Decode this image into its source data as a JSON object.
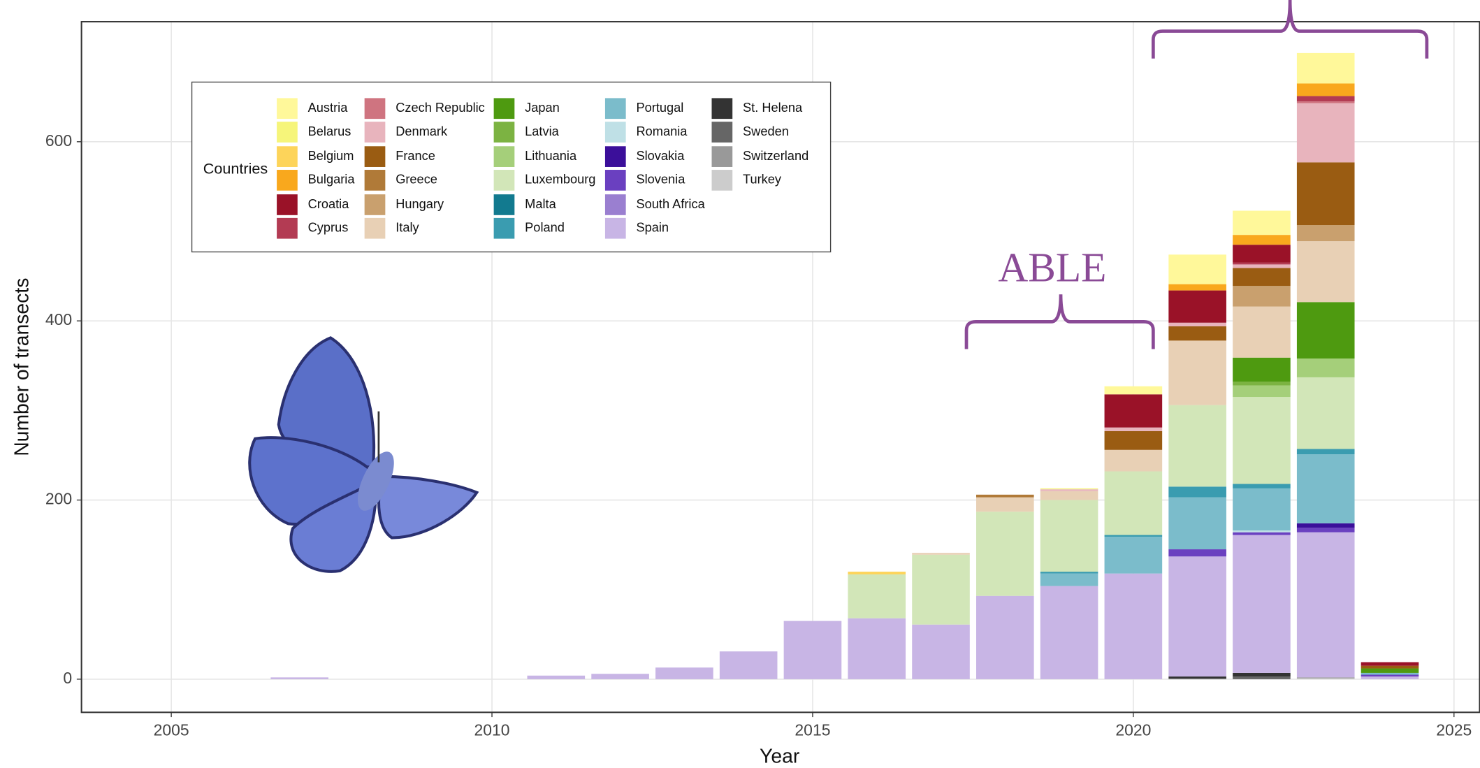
{
  "chart_data": {
    "type": "bar",
    "stacked": true,
    "x_label": "Year",
    "y_label": "Number of transects",
    "legend_title": "Countries",
    "annotation": "ABLE",
    "x": [
      2007,
      2011,
      2012,
      2013,
      2014,
      2015,
      2016,
      2017,
      2018,
      2019,
      2020,
      2021,
      2022,
      2023,
      2024
    ],
    "xlim": [
      2003.6,
      2025.4
    ],
    "xticks": [
      2005,
      2010,
      2015,
      2020,
      2025
    ],
    "ylim": [
      -37,
      734
    ],
    "yticks": [
      0,
      200,
      400,
      600
    ],
    "grid": true,
    "series": [
      {
        "name": "Austria",
        "color": "#fff89a",
        "values": [
          0,
          0,
          0,
          0,
          0,
          0,
          0,
          0,
          0,
          0,
          9,
          33,
          27,
          34,
          0
        ]
      },
      {
        "name": "Belarus",
        "color": "#f6f57a",
        "values": [
          0,
          0,
          0,
          0,
          0,
          0,
          0,
          0,
          0,
          1,
          0,
          0,
          0,
          0,
          0
        ]
      },
      {
        "name": "Belgium",
        "color": "#fdd45a",
        "values": [
          0,
          0,
          0,
          0,
          0,
          0,
          3,
          0,
          0,
          0,
          0,
          0,
          0,
          0,
          0
        ]
      },
      {
        "name": "Bulgaria",
        "color": "#f9a81d",
        "values": [
          0,
          0,
          0,
          0,
          0,
          0,
          0,
          0,
          0,
          0,
          0,
          7,
          11,
          14,
          0
        ]
      },
      {
        "name": "Croatia",
        "color": "#9a1228",
        "values": [
          0,
          0,
          0,
          0,
          0,
          0,
          0,
          0,
          0,
          0,
          37,
          36,
          20,
          0,
          4
        ]
      },
      {
        "name": "Cyprus",
        "color": "#b33b53",
        "values": [
          0,
          0,
          0,
          0,
          0,
          0,
          0,
          0,
          0,
          0,
          0,
          0,
          2,
          6,
          0
        ]
      },
      {
        "name": "Czech Republic",
        "color": "#cf7480",
        "values": [
          0,
          0,
          0,
          0,
          0,
          0,
          0,
          0,
          0,
          0,
          0,
          0,
          0,
          2,
          0
        ]
      },
      {
        "name": "Denmark",
        "color": "#e8b4bd",
        "values": [
          0,
          0,
          0,
          0,
          0,
          0,
          0,
          0,
          0,
          2,
          4,
          4,
          4,
          66,
          0
        ]
      },
      {
        "name": "France",
        "color": "#9a5c12",
        "values": [
          0,
          0,
          0,
          0,
          0,
          0,
          0,
          0,
          0,
          0,
          21,
          16,
          20,
          70,
          3
        ]
      },
      {
        "name": "Greece",
        "color": "#b07a38",
        "values": [
          0,
          0,
          0,
          0,
          0,
          0,
          0,
          0,
          3,
          0,
          0,
          0,
          0,
          0,
          0
        ]
      },
      {
        "name": "Hungary",
        "color": "#c9a06e",
        "values": [
          0,
          0,
          0,
          0,
          0,
          0,
          0,
          0,
          0,
          0,
          0,
          0,
          23,
          18,
          0
        ]
      },
      {
        "name": "Italy",
        "color": "#e8d0b5",
        "values": [
          0,
          0,
          0,
          0,
          0,
          0,
          0,
          2,
          16,
          10,
          24,
          72,
          57,
          68,
          0
        ]
      },
      {
        "name": "Japan",
        "color": "#4e9a10",
        "values": [
          0,
          0,
          0,
          0,
          0,
          0,
          0,
          0,
          0,
          0,
          0,
          0,
          27,
          63,
          5
        ]
      },
      {
        "name": "Latvia",
        "color": "#7cb342",
        "values": [
          0,
          0,
          0,
          0,
          0,
          0,
          0,
          0,
          0,
          0,
          0,
          0,
          4,
          0,
          0
        ]
      },
      {
        "name": "Lithuania",
        "color": "#a5cf7a",
        "values": [
          0,
          0,
          0,
          0,
          0,
          0,
          0,
          0,
          0,
          0,
          0,
          0,
          13,
          21,
          0
        ]
      },
      {
        "name": "Luxembourg",
        "color": "#d2e6b8",
        "values": [
          0,
          0,
          0,
          0,
          0,
          0,
          49,
          78,
          94,
          80,
          71,
          91,
          97,
          80,
          0
        ]
      },
      {
        "name": "Malta",
        "color": "#127a8f",
        "values": [
          0,
          0,
          0,
          0,
          0,
          0,
          0,
          0,
          0,
          0,
          0,
          0,
          0,
          0,
          0
        ]
      },
      {
        "name": "Poland",
        "color": "#3a9cb0",
        "values": [
          0,
          0,
          0,
          0,
          0,
          0,
          0,
          0,
          0,
          2,
          2,
          12,
          5,
          6,
          0
        ]
      },
      {
        "name": "Portugal",
        "color": "#7bbccb",
        "values": [
          0,
          0,
          0,
          0,
          0,
          0,
          0,
          0,
          0,
          14,
          41,
          58,
          47,
          77,
          2
        ]
      },
      {
        "name": "Romania",
        "color": "#bfe0e6",
        "values": [
          0,
          0,
          0,
          0,
          0,
          0,
          0,
          0,
          0,
          0,
          0,
          0,
          2,
          0,
          0
        ]
      },
      {
        "name": "Slovakia",
        "color": "#3b0f9a",
        "values": [
          0,
          0,
          0,
          0,
          0,
          0,
          0,
          0,
          0,
          0,
          0,
          0,
          0,
          5,
          0
        ]
      },
      {
        "name": "Slovenia",
        "color": "#6a40c0",
        "values": [
          0,
          0,
          0,
          0,
          0,
          0,
          0,
          0,
          0,
          0,
          0,
          8,
          3,
          5,
          2
        ]
      },
      {
        "name": "South Africa",
        "color": "#9a7fd0",
        "values": [
          0,
          0,
          0,
          0,
          0,
          0,
          0,
          0,
          0,
          0,
          0,
          0,
          0,
          0,
          0
        ]
      },
      {
        "name": "Spain",
        "color": "#c8b5e5",
        "values": [
          2,
          4,
          6,
          13,
          31,
          65,
          68,
          61,
          93,
          104,
          118,
          134,
          154,
          162,
          3
        ]
      },
      {
        "name": "St. Helena",
        "color": "#333333",
        "values": [
          0,
          0,
          0,
          0,
          0,
          0,
          0,
          0,
          0,
          0,
          0,
          2,
          4,
          0,
          0
        ]
      },
      {
        "name": "Sweden",
        "color": "#666666",
        "values": [
          0,
          0,
          0,
          0,
          0,
          0,
          0,
          0,
          0,
          0,
          0,
          1,
          3,
          0,
          0
        ]
      },
      {
        "name": "Switzerland",
        "color": "#999999",
        "values": [
          0,
          0,
          0,
          0,
          0,
          0,
          0,
          0,
          0,
          0,
          0,
          0,
          0,
          1,
          0
        ]
      },
      {
        "name": "Turkey",
        "color": "#cccccc",
        "values": [
          0,
          0,
          0,
          0,
          0,
          0,
          0,
          0,
          0,
          0,
          0,
          0,
          0,
          1,
          0
        ]
      }
    ]
  }
}
